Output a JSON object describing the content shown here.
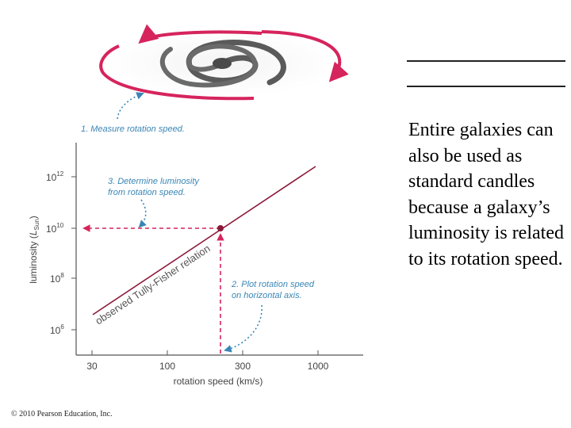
{
  "figure": {
    "step1": "1. Measure rotation speed.",
    "step2_line1": "2. Plot rotation speed",
    "step2_line2": "on horizontal axis.",
    "step3_line1": "3. Determine luminosity",
    "step3_line2": "from rotation speed.",
    "relation_label": "observed Tully-Fisher relation",
    "y_axis_label_main": "luminosity (",
    "y_axis_label_var": "L",
    "y_axis_label_sub": "Sun",
    "y_axis_label_end": ")",
    "x_axis_label": "rotation speed (km/s)",
    "x_ticks": [
      "30",
      "100",
      "300",
      "1000"
    ],
    "y_ticks": [
      {
        "base": "10",
        "exp": "12"
      },
      {
        "base": "10",
        "exp": "10"
      },
      {
        "base": "10",
        "exp": "8"
      },
      {
        "base": "10",
        "exp": "6"
      }
    ],
    "colors": {
      "relation_line": "#8b1a3a",
      "arrows": "#d6245c",
      "notes": "#3a86b6",
      "axis": "#555555"
    }
  },
  "copyright": "© 2010 Pearson Education, Inc.",
  "body_text": "Entire galaxies can also be used as standard candles because a galaxy’s luminosity is related to its rotation speed."
}
